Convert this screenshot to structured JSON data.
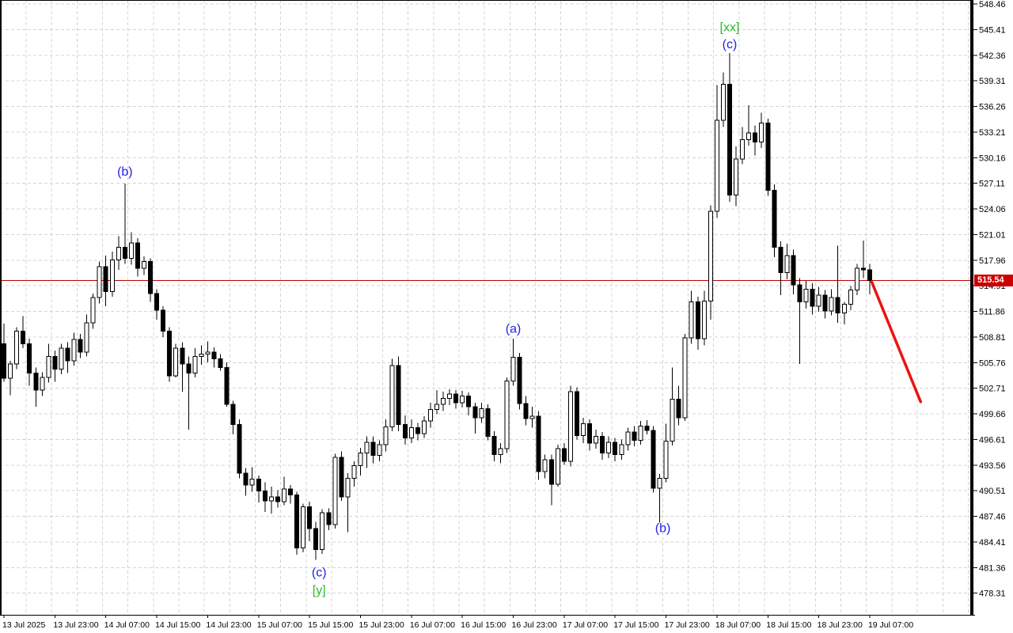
{
  "chart_data": {
    "type": "candlestick",
    "timeframe_implied": "1 hour per candle",
    "x_axis": {
      "labels": [
        "13 Jul 2025",
        "13 Jul 23:00",
        "14 Jul 07:00",
        "14 Jul 15:00",
        "14 Jul 23:00",
        "15 Jul 07:00",
        "15 Jul 15:00",
        "15 Jul 23:00",
        "16 Jul 07:00",
        "16 Jul 15:00",
        "16 Jul 23:00",
        "17 Jul 07:00",
        "17 Jul 15:00",
        "17 Jul 23:00",
        "18 Jul 07:00",
        "18 Jul 15:00",
        "18 Jul 23:00",
        "19 Jul 07:00"
      ],
      "label_every_n_candles": 8,
      "first_label_candle_index": 1
    },
    "y_axis": {
      "ticks": [
        548.46,
        545.41,
        542.36,
        539.31,
        536.26,
        533.21,
        530.16,
        527.11,
        524.06,
        521.01,
        517.96,
        514.91,
        511.86,
        508.81,
        505.76,
        502.71,
        499.66,
        496.61,
        493.56,
        490.51,
        487.46,
        484.41,
        481.36,
        478.31
      ],
      "tick_step": 3.05
    },
    "ylim": [
      475.7,
      548.9
    ],
    "grid": "dashed",
    "candles": [
      [
        506.0,
        510.3,
        499.8,
        508.0
      ],
      [
        508.0,
        510.4,
        503.5,
        503.9
      ],
      [
        503.9,
        506.0,
        501.9,
        505.6
      ],
      [
        505.6,
        510.0,
        505.0,
        509.5
      ],
      [
        509.5,
        511.3,
        507.5,
        508.0
      ],
      [
        508.0,
        508.6,
        503.0,
        504.5
      ],
      [
        504.5,
        505.2,
        500.5,
        502.5
      ],
      [
        502.5,
        504.6,
        501.8,
        504.0
      ],
      [
        504.0,
        508.0,
        503.4,
        506.5
      ],
      [
        506.5,
        507.2,
        503.5,
        505.0
      ],
      [
        505.0,
        508.0,
        504.4,
        507.5
      ],
      [
        507.5,
        508.2,
        504.5,
        506.0
      ],
      [
        506.0,
        509.3,
        505.4,
        508.5
      ],
      [
        508.5,
        509.2,
        506.3,
        507.0
      ],
      [
        507.0,
        511.5,
        506.5,
        510.5
      ],
      [
        510.5,
        514.0,
        509.8,
        513.5
      ],
      [
        513.5,
        517.8,
        512.8,
        517.2
      ],
      [
        517.2,
        518.5,
        512.5,
        514.2
      ],
      [
        514.2,
        519.0,
        513.6,
        518.0
      ],
      [
        518.0,
        520.8,
        516.8,
        519.5
      ],
      [
        519.5,
        527.1,
        517.5,
        518.2
      ],
      [
        518.2,
        521.3,
        517.4,
        520.0
      ],
      [
        520.0,
        520.6,
        516.0,
        517.0
      ],
      [
        517.0,
        518.4,
        516.2,
        517.8
      ],
      [
        517.8,
        518.2,
        513.0,
        514.0
      ],
      [
        514.0,
        514.5,
        510.9,
        512.0
      ],
      [
        512.0,
        512.5,
        508.8,
        509.5
      ],
      [
        509.5,
        510.0,
        503.5,
        504.2
      ],
      [
        504.2,
        508.0,
        504.0,
        507.5
      ],
      [
        507.5,
        508.2,
        502.3,
        505.6
      ],
      [
        505.6,
        506.5,
        497.8,
        504.5
      ],
      [
        504.5,
        507.5,
        504.0,
        506.5
      ],
      [
        506.5,
        507.8,
        505.5,
        506.8
      ],
      [
        506.8,
        508.3,
        505.8,
        507.0
      ],
      [
        507.0,
        507.6,
        505.2,
        506.2
      ],
      [
        506.2,
        506.8,
        504.8,
        505.2
      ],
      [
        505.2,
        505.8,
        500.5,
        500.8
      ],
      [
        500.8,
        501.2,
        497.2,
        498.4
      ],
      [
        498.4,
        499.0,
        492.0,
        492.6
      ],
      [
        492.6,
        493.2,
        489.9,
        491.2
      ],
      [
        491.2,
        493.3,
        490.4,
        491.9
      ],
      [
        491.9,
        492.3,
        489.1,
        490.5
      ],
      [
        490.5,
        491.5,
        488.0,
        489.3
      ],
      [
        489.3,
        491.0,
        487.8,
        489.8
      ],
      [
        489.8,
        490.6,
        488.5,
        489.2
      ],
      [
        489.2,
        492.2,
        488.8,
        490.7
      ],
      [
        490.7,
        491.2,
        489.0,
        490.0
      ],
      [
        490.0,
        490.4,
        482.9,
        483.7
      ],
      [
        483.7,
        489.0,
        483.2,
        488.6
      ],
      [
        488.6,
        489.2,
        484.5,
        486.0
      ],
      [
        486.0,
        486.8,
        482.3,
        483.5
      ],
      [
        483.5,
        488.3,
        483.0,
        487.9
      ],
      [
        487.9,
        488.4,
        485.8,
        486.5
      ],
      [
        486.5,
        494.9,
        486.0,
        494.5
      ],
      [
        494.5,
        495.2,
        489.3,
        489.8
      ],
      [
        489.8,
        492.6,
        485.6,
        492.0
      ],
      [
        492.0,
        494.0,
        491.0,
        493.5
      ],
      [
        493.5,
        495.6,
        492.3,
        495.0
      ],
      [
        495.0,
        497.0,
        493.2,
        496.3
      ],
      [
        496.3,
        497.0,
        493.8,
        494.7
      ],
      [
        494.7,
        496.5,
        494.0,
        496.0
      ],
      [
        496.0,
        499.0,
        495.2,
        498.1
      ],
      [
        498.1,
        506.2,
        497.6,
        505.4
      ],
      [
        505.4,
        506.5,
        497.6,
        498.4
      ],
      [
        498.4,
        499.5,
        496.0,
        496.8
      ],
      [
        496.8,
        499.0,
        496.2,
        498.0
      ],
      [
        498.0,
        498.6,
        496.5,
        497.3
      ],
      [
        497.3,
        499.4,
        496.8,
        498.8
      ],
      [
        498.8,
        501.0,
        498.0,
        500.2
      ],
      [
        500.2,
        502.5,
        499.6,
        500.8
      ],
      [
        500.8,
        502.3,
        500.0,
        501.5
      ],
      [
        501.5,
        502.6,
        500.7,
        502.0
      ],
      [
        502.0,
        502.5,
        500.3,
        501.0
      ],
      [
        501.0,
        502.4,
        500.4,
        501.8
      ],
      [
        501.8,
        502.2,
        499.5,
        500.5
      ],
      [
        500.5,
        501.0,
        497.3,
        499.2
      ],
      [
        499.2,
        501.0,
        498.6,
        500.3
      ],
      [
        500.3,
        500.8,
        496.5,
        497.0
      ],
      [
        497.0,
        497.6,
        494.0,
        494.8
      ],
      [
        494.8,
        496.2,
        493.8,
        495.5
      ],
      [
        495.5,
        504.0,
        495.0,
        503.6
      ],
      [
        503.6,
        508.6,
        503.0,
        506.4
      ],
      [
        506.4,
        506.9,
        500.2,
        500.9
      ],
      [
        500.9,
        501.8,
        498.3,
        499.1
      ],
      [
        499.1,
        500.5,
        498.0,
        499.4
      ],
      [
        499.4,
        500.0,
        491.8,
        492.8
      ],
      [
        492.8,
        494.8,
        492.0,
        494.2
      ],
      [
        494.2,
        494.8,
        488.8,
        491.3
      ],
      [
        491.3,
        496.0,
        491.0,
        495.5
      ],
      [
        495.5,
        496.2,
        493.6,
        494.0
      ],
      [
        494.0,
        503.0,
        493.4,
        502.3
      ],
      [
        502.3,
        502.8,
        496.6,
        497.1
      ],
      [
        497.1,
        499.2,
        496.2,
        498.5
      ],
      [
        498.5,
        499.0,
        495.3,
        496.2
      ],
      [
        496.2,
        497.8,
        495.5,
        497.0
      ],
      [
        497.0,
        497.5,
        494.2,
        495.0
      ],
      [
        495.0,
        497.0,
        494.4,
        496.3
      ],
      [
        496.3,
        496.8,
        494.0,
        494.8
      ],
      [
        494.8,
        496.6,
        494.2,
        496.0
      ],
      [
        496.0,
        498.0,
        495.3,
        497.5
      ],
      [
        497.5,
        498.2,
        495.8,
        496.5
      ],
      [
        496.5,
        498.8,
        496.0,
        498.2
      ],
      [
        498.2,
        498.9,
        497.2,
        497.7
      ],
      [
        497.7,
        498.2,
        490.3,
        490.8
      ],
      [
        490.8,
        492.5,
        486.7,
        492.0
      ],
      [
        492.0,
        498.5,
        491.5,
        496.4
      ],
      [
        496.4,
        505.2,
        495.9,
        501.4
      ],
      [
        501.4,
        503.0,
        498.3,
        499.2
      ],
      [
        499.2,
        509.2,
        498.8,
        508.7
      ],
      [
        508.7,
        514.3,
        508.0,
        513.0
      ],
      [
        513.0,
        513.6,
        507.3,
        508.6
      ],
      [
        508.6,
        514.3,
        507.8,
        513.1
      ],
      [
        513.1,
        524.5,
        510.9,
        523.8
      ],
      [
        523.8,
        538.8,
        523.0,
        534.6
      ],
      [
        534.6,
        540.3,
        533.8,
        538.9
      ],
      [
        538.9,
        542.6,
        524.9,
        525.7
      ],
      [
        525.7,
        531.5,
        524.4,
        530.0
      ],
      [
        530.0,
        533.8,
        529.4,
        532.3
      ],
      [
        532.3,
        536.4,
        531.6,
        533.1
      ],
      [
        533.1,
        534.0,
        530.4,
        532.0
      ],
      [
        532.0,
        535.5,
        531.3,
        534.3
      ],
      [
        534.3,
        534.8,
        525.6,
        526.3
      ],
      [
        526.3,
        527.0,
        518.3,
        519.5
      ],
      [
        519.5,
        520.2,
        513.8,
        516.5
      ],
      [
        516.5,
        519.9,
        515.7,
        518.5
      ],
      [
        518.5,
        519.2,
        513.9,
        515.0
      ],
      [
        515.0,
        515.8,
        505.6,
        513.0
      ],
      [
        513.0,
        515.5,
        512.2,
        514.5
      ],
      [
        514.5,
        515.2,
        511.5,
        512.5
      ],
      [
        512.5,
        514.8,
        511.8,
        513.8
      ],
      [
        513.8,
        514.4,
        511.0,
        511.9
      ],
      [
        511.9,
        514.5,
        511.4,
        513.5
      ],
      [
        513.5,
        519.7,
        510.5,
        511.7
      ],
      [
        511.7,
        513.0,
        510.3,
        512.7
      ],
      [
        512.7,
        514.9,
        512.0,
        514.4
      ],
      [
        514.4,
        517.5,
        513.8,
        517.0
      ],
      [
        517.0,
        520.3,
        515.8,
        516.8
      ],
      [
        516.8,
        517.5,
        513.9,
        515.54
      ]
    ],
    "annotations": [
      {
        "text": "(b)",
        "candle": 20,
        "price": 528.4,
        "color": "#2222e6"
      },
      {
        "text": "(a)",
        "candle": 81,
        "price": 509.7,
        "color": "#2222e6"
      },
      {
        "text": "(c)",
        "candle": 115,
        "price": 543.6,
        "color": "#2222e6"
      },
      {
        "text": "[xx]",
        "candle": 115,
        "price": 545.6,
        "color": "#2db92d"
      },
      {
        "text": "(c)",
        "candle": 50.5,
        "price": 480.7,
        "color": "#2222e6"
      },
      {
        "text": "[y]",
        "candle": 50.5,
        "price": 478.6,
        "color": "#2db92d"
      },
      {
        "text": "(b)",
        "candle": 104.5,
        "price": 486.0,
        "color": "#2222e6"
      }
    ],
    "price_line": {
      "value": 515.54,
      "label": "515.54",
      "line_color": "#bb0000",
      "tag_background": "#cc0000",
      "tag_text_color": "#ffffff"
    },
    "trend_line": {
      "from_candle": 137.3,
      "from_price": 515.4,
      "to_candle": 145,
      "to_price": 501.1,
      "color": "#ee1111",
      "width": 3.5
    },
    "colors": {
      "background": "#ffffff",
      "grid": "#d4d4d4",
      "bull_body": "#ffffff",
      "bear_body": "#000000",
      "candle_outline": "#000000",
      "axis_text": "#000000",
      "border": "#000000"
    }
  }
}
